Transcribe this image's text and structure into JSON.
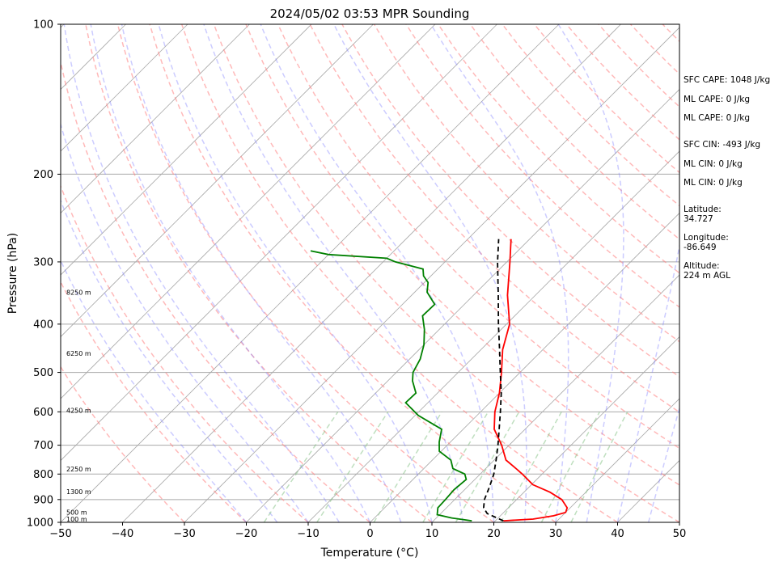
{
  "chart_data": {
    "type": "skew-t",
    "title": "2024/05/02 03:53 MPR Sounding",
    "xlabel": "Temperature (°C)",
    "ylabel": "Pressure (hPa)",
    "xlim": [
      -50,
      50
    ],
    "ylim": [
      1000,
      100
    ],
    "x_ticks": [
      "−50",
      "−40",
      "−30",
      "−20",
      "−10",
      "0",
      "10",
      "20",
      "30",
      "40",
      "50"
    ],
    "y_ticks": [
      "1000",
      "900",
      "800",
      "700",
      "600",
      "500",
      "400",
      "300",
      "200",
      "100"
    ],
    "height_labels": [
      {
        "p": 985,
        "label": "100 m"
      },
      {
        "p": 955,
        "label": "500 m"
      },
      {
        "p": 868,
        "label": "1300 m"
      },
      {
        "p": 782,
        "label": "2250 m"
      },
      {
        "p": 596,
        "label": "4250 m"
      },
      {
        "p": 458,
        "label": "6250 m"
      },
      {
        "p": 345,
        "label": "8250 m"
      }
    ],
    "series": [
      {
        "color": "#ff0000",
        "points": [
          {
            "p": 993,
            "t": 21.3
          },
          {
            "p": 985,
            "t": 25.8
          },
          {
            "p": 970,
            "t": 28.6
          },
          {
            "p": 955,
            "t": 30.0
          },
          {
            "p": 935,
            "t": 29.5
          },
          {
            "p": 900,
            "t": 27.3
          },
          {
            "p": 870,
            "t": 24.2
          },
          {
            "p": 840,
            "t": 20.2
          },
          {
            "p": 800,
            "t": 16.8
          },
          {
            "p": 780,
            "t": 14.9
          },
          {
            "p": 750,
            "t": 11.9
          },
          {
            "p": 700,
            "t": 8.8
          },
          {
            "p": 650,
            "t": 5.0
          },
          {
            "p": 600,
            "t": 2.3
          },
          {
            "p": 550,
            "t": 0.0
          },
          {
            "p": 500,
            "t": -3.0
          },
          {
            "p": 450,
            "t": -6.5
          },
          {
            "p": 400,
            "t": -9.5
          },
          {
            "p": 350,
            "t": -14.5
          },
          {
            "p": 300,
            "t": -19.5
          },
          {
            "p": 280,
            "t": -21.8
          },
          {
            "p": 270,
            "t": -23.0
          }
        ]
      },
      {
        "color": "#008000",
        "points": [
          {
            "p": 993,
            "t": 16.2
          },
          {
            "p": 980,
            "t": 12.5
          },
          {
            "p": 965,
            "t": 9.6
          },
          {
            "p": 935,
            "t": 8.6
          },
          {
            "p": 900,
            "t": 8.5
          },
          {
            "p": 860,
            "t": 8.3
          },
          {
            "p": 820,
            "t": 8.6
          },
          {
            "p": 800,
            "t": 7.5
          },
          {
            "p": 780,
            "t": 4.7
          },
          {
            "p": 750,
            "t": 3.0
          },
          {
            "p": 720,
            "t": -0.3
          },
          {
            "p": 690,
            "t": -1.8
          },
          {
            "p": 650,
            "t": -3.5
          },
          {
            "p": 610,
            "t": -9.5
          },
          {
            "p": 575,
            "t": -13.6
          },
          {
            "p": 550,
            "t": -13.5
          },
          {
            "p": 520,
            "t": -16.0
          },
          {
            "p": 500,
            "t": -17.3
          },
          {
            "p": 470,
            "t": -18.3
          },
          {
            "p": 440,
            "t": -20.0
          },
          {
            "p": 410,
            "t": -22.4
          },
          {
            "p": 385,
            "t": -24.9
          },
          {
            "p": 365,
            "t": -24.8
          },
          {
            "p": 345,
            "t": -28.0
          },
          {
            "p": 330,
            "t": -29.4
          },
          {
            "p": 320,
            "t": -31.2
          },
          {
            "p": 310,
            "t": -32.4
          },
          {
            "p": 300,
            "t": -38.0
          },
          {
            "p": 295,
            "t": -40.0
          },
          {
            "p": 290,
            "t": -50.0
          },
          {
            "p": 285,
            "t": -53.5
          }
        ]
      },
      {
        "color": "#000000",
        "dash": "dashed",
        "points": [
          {
            "p": 993,
            "t": 21.3
          },
          {
            "p": 960,
            "t": 17.5
          },
          {
            "p": 935,
            "t": 16.0
          },
          {
            "p": 900,
            "t": 14.8
          },
          {
            "p": 850,
            "t": 13.6
          },
          {
            "p": 800,
            "t": 12.2
          },
          {
            "p": 750,
            "t": 10.3
          },
          {
            "p": 700,
            "t": 8.2
          },
          {
            "p": 650,
            "t": 5.8
          },
          {
            "p": 600,
            "t": 3.2
          },
          {
            "p": 550,
            "t": 0.3
          },
          {
            "p": 500,
            "t": -3.2
          },
          {
            "p": 450,
            "t": -7.0
          },
          {
            "p": 400,
            "t": -11.3
          },
          {
            "p": 350,
            "t": -16.0
          },
          {
            "p": 300,
            "t": -21.5
          },
          {
            "p": 270,
            "t": -25.0
          }
        ]
      }
    ],
    "side_text": [
      {
        "text": "SFC CAPE: 1048 J/kg"
      },
      {
        "text": "ML CAPE: 0 J/kg"
      },
      {
        "text": "ML CAPE: 0 J/kg"
      },
      {
        "text": "SFC CIN: -493 J/kg"
      },
      {
        "text": "ML CIN: 0 J/kg"
      },
      {
        "text": "ML CIN: 0 J/kg"
      },
      {
        "text": "Latitude:"
      },
      {
        "text": "34.727"
      },
      {
        "text": "Longitude:"
      },
      {
        "text": "-86.649"
      },
      {
        "text": "Altitude:"
      },
      {
        "text": "224 m AGL"
      }
    ],
    "grid": true,
    "colors": {
      "temperature": "#ff0000",
      "dewpoint": "#008000",
      "parcel": "#000000",
      "isotherms": "#a9a9a9",
      "dry_adiabats": "#ff7f7f",
      "moist_adiabats": "#7f7fff",
      "mixing_ratio": "#7fbf7f"
    }
  }
}
